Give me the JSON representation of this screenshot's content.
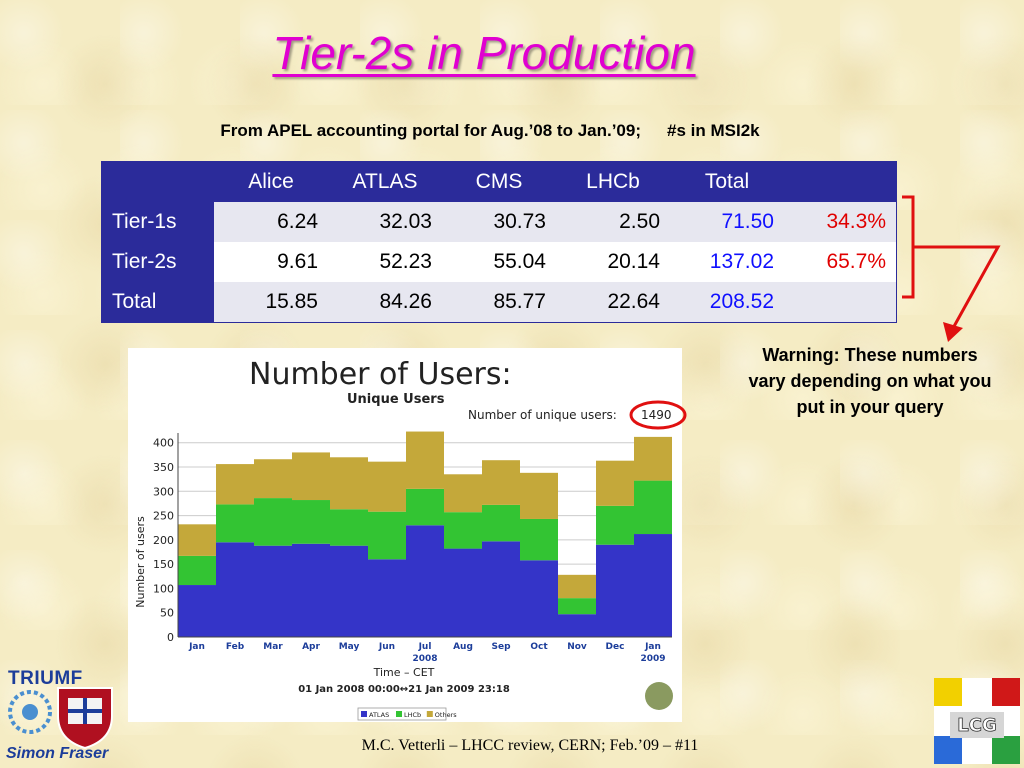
{
  "slide": {
    "title": "Tier-2s in Production",
    "subtitle_left": "From APEL accounting portal for Aug.’08 to Jan.’09;",
    "subtitle_right": "#s in MSI2k",
    "warning": "Warning: These numbers vary depending on what you put in your query",
    "footer": "M.C. Vetterli – LHCC review, CERN; Feb.’09 – #11",
    "logo_triumf": "TRIUMF",
    "logo_sfu": "Simon Fraser",
    "logo_lcg": "LCG",
    "colors": {
      "title": "#e000d0",
      "table_header": "#2b2b9a",
      "total": "#1010ff",
      "percent": "#e00000",
      "arrow": "#e01010"
    }
  },
  "accounting_table": {
    "headers": [
      "",
      "Alice",
      "ATLAS",
      "CMS",
      "LHCb",
      "Total",
      ""
    ],
    "rows": [
      {
        "label": "Tier-1s",
        "values": [
          "6.24",
          "32.03",
          "30.73",
          "2.50"
        ],
        "total": "71.50",
        "percent": "34.3%"
      },
      {
        "label": "Tier-2s",
        "values": [
          "9.61",
          "52.23",
          "55.04",
          "20.14"
        ],
        "total": "137.02",
        "percent": "65.7%"
      },
      {
        "label": "Total",
        "values": [
          "15.85",
          "84.26",
          "85.77",
          "22.64"
        ],
        "total": "208.52",
        "percent": ""
      }
    ]
  },
  "chart_data": {
    "type": "bar",
    "stacked": true,
    "heading": "Number of Users:",
    "title": "Unique Users",
    "annotation_label": "Number of unique users:",
    "annotation_value": "1490",
    "ylabel": "Number of users",
    "xlabel": "Time – CET",
    "time_range": "01 Jan 2008 00:00↔21 Jan 2009 23:18",
    "year_labels": [
      {
        "label": "2008",
        "at": "Jul"
      },
      {
        "label": "2009",
        "at": "Jan"
      }
    ],
    "ylim": [
      0,
      420
    ],
    "yticks": [
      0,
      50,
      100,
      150,
      200,
      250,
      300,
      350,
      400
    ],
    "categories": [
      "Jan",
      "Feb",
      "Mar",
      "Apr",
      "May",
      "Jun",
      "Jul",
      "Aug",
      "Sep",
      "Oct",
      "Nov",
      "Dec",
      "Jan"
    ],
    "series": [
      {
        "name": "ATLAS",
        "color": "#3434c8",
        "values": [
          107,
          195,
          188,
          192,
          188,
          160,
          230,
          182,
          197,
          158,
          47,
          190,
          212
        ]
      },
      {
        "name": "LHCb",
        "color": "#33c433",
        "values": [
          60,
          78,
          98,
          90,
          75,
          98,
          75,
          75,
          75,
          85,
          33,
          80,
          110
        ]
      },
      {
        "name": "Others",
        "color": "#c4a83a",
        "values": [
          65,
          83,
          80,
          98,
          107,
          103,
          118,
          78,
          92,
          95,
          48,
          93,
          90
        ]
      }
    ]
  }
}
